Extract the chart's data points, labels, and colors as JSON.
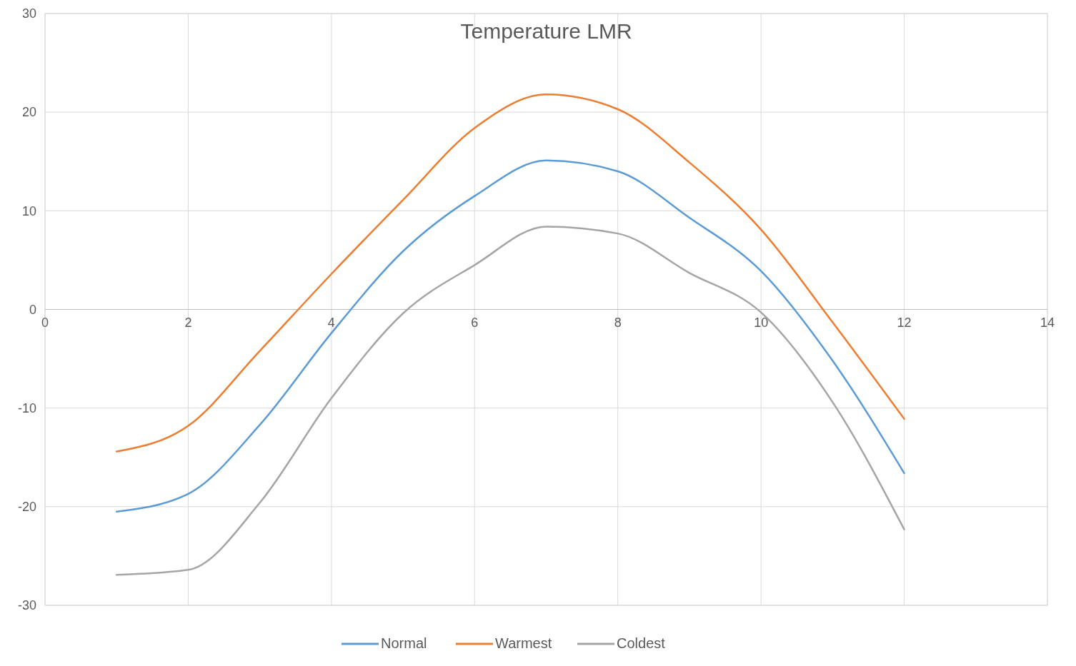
{
  "chart_data": {
    "type": "line",
    "title": "Temperature LMR",
    "x": [
      1,
      2,
      3,
      4,
      5,
      6,
      7,
      8,
      9,
      10,
      11,
      12
    ],
    "series": [
      {
        "name": "Normal",
        "color": "#5b9bd5",
        "values": [
          -20.5,
          -18.7,
          -11.7,
          -2.4,
          5.9,
          11.5,
          15.1,
          14.0,
          9.3,
          3.9,
          -5.2,
          -16.6
        ]
      },
      {
        "name": "Warmest",
        "color": "#ed7d31",
        "values": [
          -14.4,
          -11.8,
          -4.2,
          3.6,
          11.1,
          18.4,
          21.8,
          20.3,
          14.9,
          8.1,
          -1.3,
          -11.1
        ]
      },
      {
        "name": "Coldest",
        "color": "#a5a5a5",
        "values": [
          -26.9,
          -26.4,
          -19.6,
          -9.0,
          -0.4,
          4.5,
          8.4,
          7.7,
          3.7,
          -0.3,
          -9.4,
          -22.3
        ]
      }
    ],
    "xlim": [
      0,
      14
    ],
    "xticks": [
      0,
      2,
      4,
      6,
      8,
      10,
      12,
      14
    ],
    "ylim": [
      -30,
      30
    ],
    "yticks": [
      -30,
      -20,
      -10,
      0,
      10,
      20,
      30
    ],
    "grid": true,
    "legend": "bottom",
    "marker": "none",
    "line_style": "solid"
  }
}
